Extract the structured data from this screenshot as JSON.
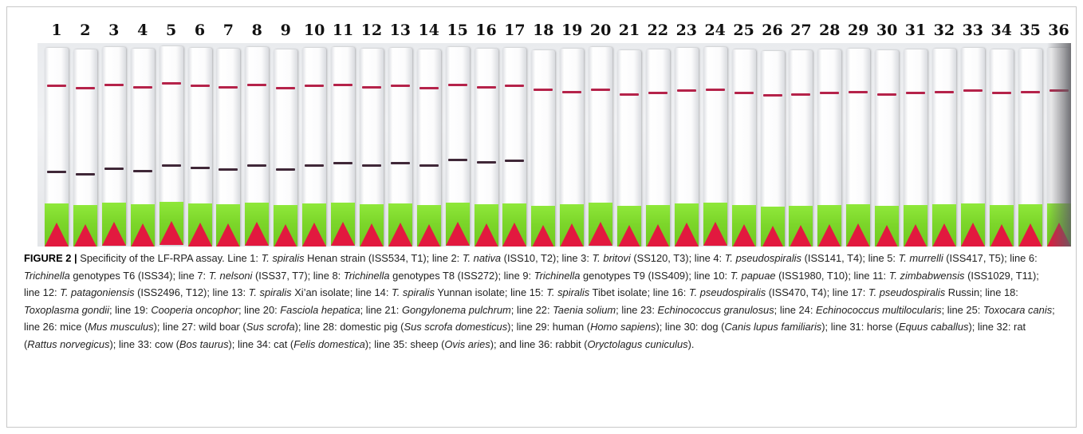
{
  "figure": {
    "label": "FIGURE 2 |",
    "lane_numbers": [
      "1",
      "2",
      "3",
      "4",
      "5",
      "6",
      "7",
      "8",
      "9",
      "10",
      "11",
      "12",
      "13",
      "14",
      "15",
      "16",
      "17",
      "18",
      "19",
      "20",
      "21",
      "22",
      "23",
      "24",
      "25",
      "26",
      "27",
      "28",
      "29",
      "30",
      "31",
      "32",
      "33",
      "34",
      "35",
      "36"
    ],
    "test_line_present_lanes": [
      "1",
      "2",
      "3",
      "4",
      "5",
      "6",
      "7",
      "8",
      "9",
      "10",
      "11",
      "12",
      "13",
      "14",
      "15",
      "16",
      "17"
    ],
    "colors": {
      "control_line": "#b5234a",
      "test_line": "#402838",
      "absorbent_pad": "#7cd62a",
      "sample_pad": "#e2193f",
      "strip": "#ffffff"
    },
    "caption_segments": [
      {
        "t": "Specificity of the LF-RPA assay. Line 1: ",
        "i": false
      },
      {
        "t": "T. spiralis",
        "i": true
      },
      {
        "t": " Henan strain (ISS534, T1); line 2: ",
        "i": false
      },
      {
        "t": "T. nativa",
        "i": true
      },
      {
        "t": " (ISS10, T2); line 3: ",
        "i": false
      },
      {
        "t": "T. britovi",
        "i": true
      },
      {
        "t": " (SS120, T3); line 4: ",
        "i": false
      },
      {
        "t": "T. pseudospiralis",
        "i": true
      },
      {
        "t": " (ISS141, T4); line 5: ",
        "i": false
      },
      {
        "t": "T. murrelli",
        "i": true
      },
      {
        "t": " (ISS417, T5); line 6: ",
        "i": false
      },
      {
        "t": "Trichinella",
        "i": true
      },
      {
        "t": " genotypes T6 (ISS34); line 7: ",
        "i": false
      },
      {
        "t": "T. nelsoni",
        "i": true
      },
      {
        "t": " (ISS37, T7); line 8: ",
        "i": false
      },
      {
        "t": "Trichinella",
        "i": true
      },
      {
        "t": " genotypes T8 (ISS272); line 9: ",
        "i": false
      },
      {
        "t": "Trichinella",
        "i": true
      },
      {
        "t": " genotypes T9 (ISS409); line 10: ",
        "i": false
      },
      {
        "t": "T. papuae",
        "i": true
      },
      {
        "t": " (ISS1980, T10); line 11: ",
        "i": false
      },
      {
        "t": "T. zimbabwensis",
        "i": true
      },
      {
        "t": " (ISS1029, T11); line 12: ",
        "i": false
      },
      {
        "t": "T. patagoniensis",
        "i": true
      },
      {
        "t": " (ISS2496, T12); line 13: ",
        "i": false
      },
      {
        "t": "T. spiralis",
        "i": true
      },
      {
        "t": " Xi’an isolate; line 14: ",
        "i": false
      },
      {
        "t": "T. spiralis",
        "i": true
      },
      {
        "t": " Yunnan isolate; line 15: ",
        "i": false
      },
      {
        "t": "T. spiralis",
        "i": true
      },
      {
        "t": " Tibet isolate; line 16: ",
        "i": false
      },
      {
        "t": "T. pseudospiralis",
        "i": true
      },
      {
        "t": " (ISS470, T4); line 17: ",
        "i": false
      },
      {
        "t": "T. pseudospiralis",
        "i": true
      },
      {
        "t": " Russin; line 18: ",
        "i": false
      },
      {
        "t": "Toxoplasma gondii",
        "i": true
      },
      {
        "t": "; line 19: ",
        "i": false
      },
      {
        "t": "Cooperia oncophor",
        "i": true
      },
      {
        "t": "; line 20: ",
        "i": false
      },
      {
        "t": "Fasciola hepatica",
        "i": true
      },
      {
        "t": "; line 21: ",
        "i": false
      },
      {
        "t": "Gongylonema pulchrum",
        "i": true
      },
      {
        "t": "; line 22: ",
        "i": false
      },
      {
        "t": "Taenia solium",
        "i": true
      },
      {
        "t": "; line 23: ",
        "i": false
      },
      {
        "t": "Echinococcus granulosus",
        "i": true
      },
      {
        "t": "; line 24: ",
        "i": false
      },
      {
        "t": "Echinococcus multilocularis",
        "i": true
      },
      {
        "t": "; line 25: ",
        "i": false
      },
      {
        "t": "Toxocara canis",
        "i": true
      },
      {
        "t": "; line 26: mice (",
        "i": false
      },
      {
        "t": "Mus musculus",
        "i": true
      },
      {
        "t": "); line 27: wild boar (",
        "i": false
      },
      {
        "t": "Sus scrofa",
        "i": true
      },
      {
        "t": "); line 28: domestic pig (",
        "i": false
      },
      {
        "t": "Sus scrofa domesticus",
        "i": true
      },
      {
        "t": "); line 29: human (",
        "i": false
      },
      {
        "t": "Homo sapiens",
        "i": true
      },
      {
        "t": "); line 30: dog (",
        "i": false
      },
      {
        "t": "Canis lupus familiaris",
        "i": true
      },
      {
        "t": "); line 31: horse (",
        "i": false
      },
      {
        "t": "Equus caballus",
        "i": true
      },
      {
        "t": "); line 32: rat (",
        "i": false
      },
      {
        "t": "Rattus norvegicus",
        "i": true
      },
      {
        "t": "); line 33: cow (",
        "i": false
      },
      {
        "t": "Bos taurus",
        "i": true
      },
      {
        "t": "); line 34: cat (",
        "i": false
      },
      {
        "t": "Felis domestica",
        "i": true
      },
      {
        "t": "); line 35: sheep (",
        "i": false
      },
      {
        "t": "Ovis aries",
        "i": true
      },
      {
        "t": "); and line 36: rabbit (",
        "i": false
      },
      {
        "t": "Oryctolagus cuniculus",
        "i": true
      },
      {
        "t": ").",
        "i": false
      }
    ]
  }
}
